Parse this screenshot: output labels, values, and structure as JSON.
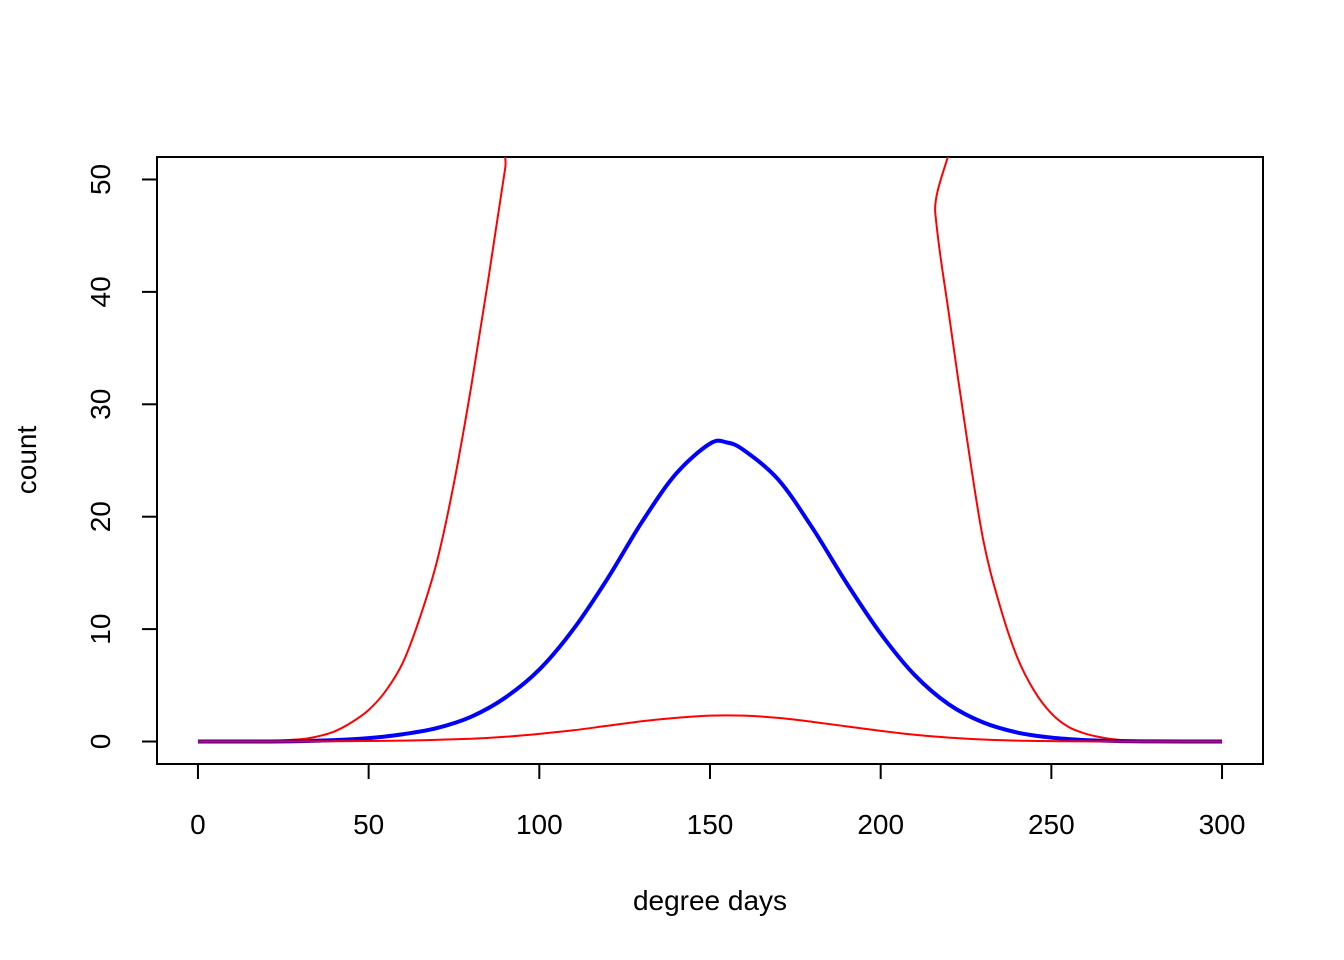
{
  "chart_data": {
    "type": "line",
    "title": "",
    "xlabel": "degree days",
    "ylabel": "count",
    "xlim": [
      -12,
      312
    ],
    "ylim": [
      -2,
      52
    ],
    "x_ticks": [
      0,
      50,
      100,
      150,
      200,
      250,
      300
    ],
    "y_ticks": [
      0,
      10,
      20,
      30,
      40,
      50
    ],
    "grid": false,
    "legend": "none",
    "colors": {
      "fit": "#0000ff",
      "bounds": "#ff0000"
    },
    "series": [
      {
        "role": "upper-bound",
        "color": "#ff0000",
        "x": [
          0,
          10,
          20,
          30,
          35,
          40,
          45,
          50,
          55,
          60,
          65,
          70,
          75,
          80,
          85,
          90,
          95,
          213,
          216,
          220,
          225,
          230,
          235,
          240,
          245,
          250,
          255,
          260,
          265,
          270,
          280,
          290,
          300
        ],
        "y": [
          0,
          0,
          0.05,
          0.2,
          0.45,
          0.9,
          1.7,
          2.8,
          4.5,
          7,
          11,
          16,
          23,
          31.5,
          41,
          51,
          60,
          60,
          47,
          38,
          27.5,
          18,
          12,
          7.5,
          4.5,
          2.5,
          1.3,
          0.7,
          0.35,
          0.15,
          0.05,
          0,
          0
        ]
      },
      {
        "role": "fit",
        "color": "#0000ff",
        "x": [
          0,
          10,
          20,
          30,
          40,
          50,
          60,
          70,
          80,
          90,
          100,
          110,
          120,
          130,
          140,
          150,
          155,
          160,
          170,
          180,
          190,
          200,
          210,
          220,
          230,
          240,
          250,
          260,
          270,
          280,
          290,
          300
        ],
        "y": [
          0,
          0,
          0,
          0.03,
          0.12,
          0.3,
          0.65,
          1.2,
          2.2,
          3.9,
          6.4,
          10,
          14.5,
          19.5,
          23.8,
          26.5,
          26.6,
          25.9,
          23.3,
          19,
          14.1,
          9.6,
          5.9,
          3.3,
          1.7,
          0.8,
          0.35,
          0.13,
          0.04,
          0.01,
          0,
          0
        ]
      },
      {
        "role": "lower-bound",
        "color": "#ff0000",
        "x": [
          0,
          20,
          40,
          60,
          80,
          90,
          100,
          110,
          120,
          130,
          140,
          150,
          160,
          170,
          180,
          190,
          200,
          210,
          220,
          230,
          240,
          250,
          260,
          280,
          300
        ],
        "y": [
          0,
          0,
          0.02,
          0.08,
          0.25,
          0.42,
          0.68,
          1.0,
          1.4,
          1.8,
          2.1,
          2.3,
          2.3,
          2.1,
          1.75,
          1.35,
          0.95,
          0.6,
          0.35,
          0.18,
          0.08,
          0.04,
          0.01,
          0,
          0
        ]
      }
    ]
  }
}
